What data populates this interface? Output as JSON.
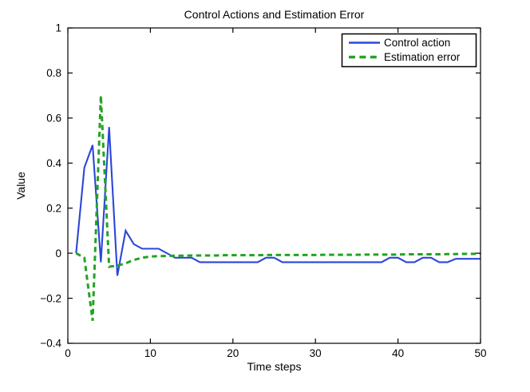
{
  "chart_data": {
    "type": "line",
    "title": "Control Actions and Estimation Error",
    "xlabel": "Time steps",
    "ylabel": "Value",
    "xlim": [
      0,
      50
    ],
    "ylim": [
      -0.4,
      1
    ],
    "grid": false,
    "legend_position": "top-right",
    "xticks": [
      {
        "value": 0,
        "label": "0"
      },
      {
        "value": 10,
        "label": "10"
      },
      {
        "value": 20,
        "label": "20"
      },
      {
        "value": 30,
        "label": "30"
      },
      {
        "value": 40,
        "label": "40"
      },
      {
        "value": 50,
        "label": "50"
      }
    ],
    "yticks": [
      {
        "value": 1,
        "label": "1"
      },
      {
        "value": 0.8,
        "label": "0.8"
      },
      {
        "value": 0.6,
        "label": "0.6"
      },
      {
        "value": 0.4,
        "label": "0.4"
      },
      {
        "value": 0.2,
        "label": "0.2"
      },
      {
        "value": 0,
        "label": "0"
      },
      {
        "value": -0.2,
        "label": "−0.2"
      },
      {
        "value": -0.4,
        "label": "−0.4"
      }
    ],
    "x": [
      1,
      2,
      3,
      4,
      5,
      6,
      7,
      8,
      9,
      10,
      11,
      12,
      13,
      14,
      15,
      16,
      17,
      18,
      19,
      20,
      21,
      22,
      23,
      24,
      25,
      26,
      27,
      28,
      29,
      30,
      31,
      32,
      33,
      34,
      35,
      36,
      37,
      38,
      39,
      40,
      41,
      42,
      43,
      44,
      45,
      46,
      47,
      48,
      49,
      50
    ],
    "series": [
      {
        "name": "Control action",
        "color": "#2b46d9",
        "line_style": "solid",
        "line_width": 2.1,
        "values": [
          0,
          0.38,
          0.48,
          -0.04,
          0.56,
          -0.1,
          0.1,
          0.04,
          0.02,
          0.02,
          0.02,
          0.0,
          -0.02,
          -0.02,
          -0.02,
          -0.04,
          -0.04,
          -0.04,
          -0.04,
          -0.04,
          -0.04,
          -0.04,
          -0.04,
          -0.02,
          -0.02,
          -0.04,
          -0.04,
          -0.04,
          -0.04,
          -0.04,
          -0.04,
          -0.04,
          -0.04,
          -0.04,
          -0.04,
          -0.04,
          -0.04,
          -0.04,
          -0.02,
          -0.02,
          -0.04,
          -0.04,
          -0.02,
          -0.02,
          -0.04,
          -0.04,
          -0.025,
          -0.025,
          -0.025,
          -0.025
        ]
      },
      {
        "name": "Estimation error",
        "color": "#22a322",
        "line_style": "dashed",
        "line_width": 3,
        "values": [
          0,
          -0.02,
          -0.3,
          0.7,
          -0.06,
          -0.055,
          -0.045,
          -0.03,
          -0.02,
          -0.015,
          -0.013,
          -0.012,
          -0.011,
          -0.011,
          -0.01,
          -0.01,
          -0.01,
          -0.01,
          -0.009,
          -0.009,
          -0.009,
          -0.009,
          -0.009,
          -0.008,
          -0.008,
          -0.008,
          -0.008,
          -0.008,
          -0.008,
          -0.008,
          -0.007,
          -0.007,
          -0.007,
          -0.007,
          -0.007,
          -0.006,
          -0.006,
          -0.006,
          -0.006,
          -0.006,
          -0.005,
          -0.005,
          -0.005,
          -0.005,
          -0.005,
          -0.004,
          -0.004,
          -0.003,
          -0.003,
          -0.002
        ]
      }
    ]
  }
}
